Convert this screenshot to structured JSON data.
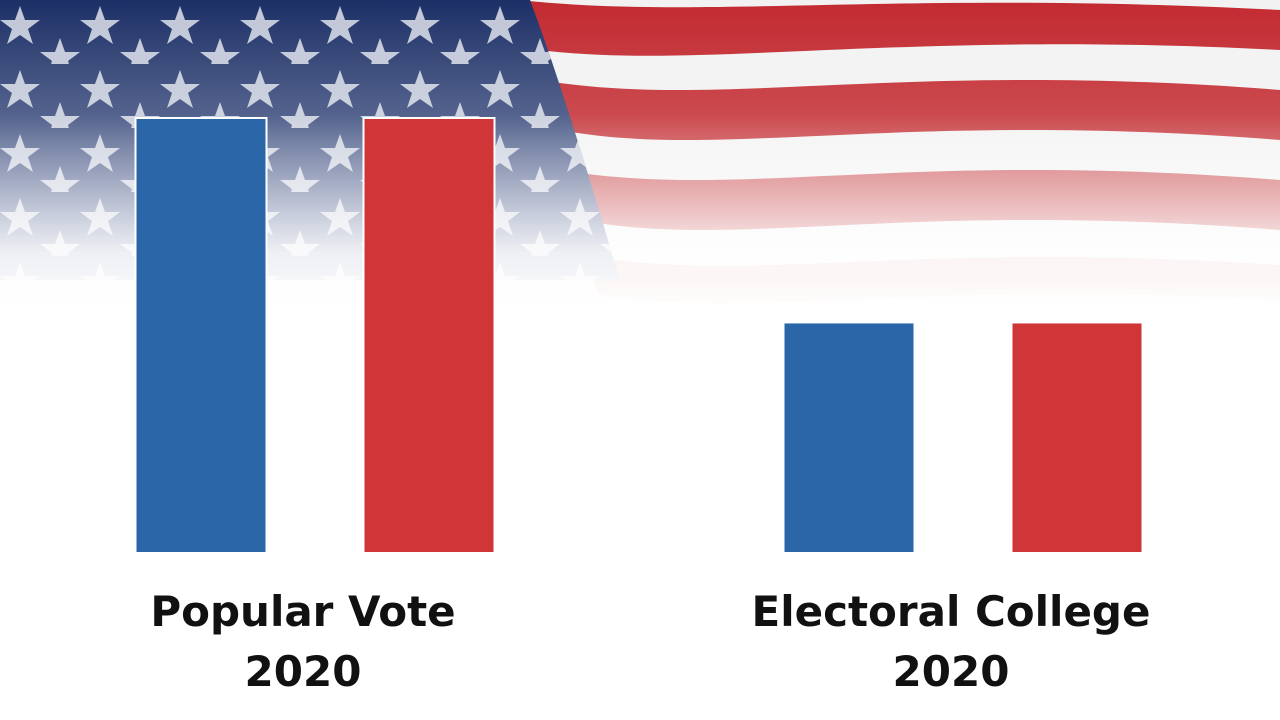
{
  "chart_data": {
    "type": "bar",
    "categories": [
      "Popular Vote 2020",
      "Electoral College 2020"
    ],
    "series": [
      {
        "color": "#2a66a8",
        "values": [
          100,
          53
        ]
      },
      {
        "color": "#d03538",
        "values": [
          100,
          53
        ]
      }
    ],
    "ylim": [
      0,
      100
    ]
  }
}
